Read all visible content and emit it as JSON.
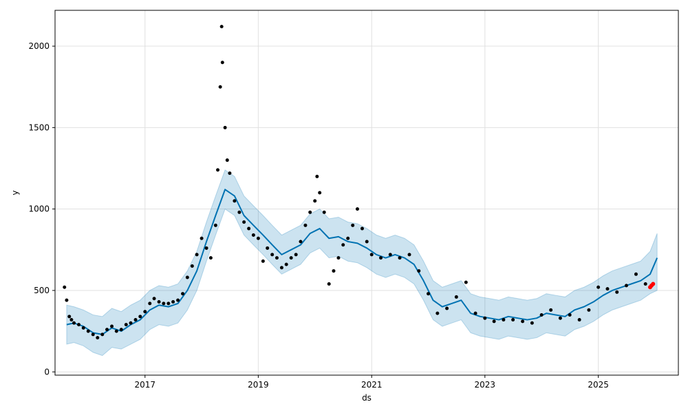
{
  "chart_data": {
    "type": "line",
    "title": "",
    "xlabel": "ds",
    "ylabel": "y",
    "xlim": [
      "2015-06-01",
      "2026-06-01"
    ],
    "ylim": [
      -20,
      2220
    ],
    "grid": true,
    "x_ticks": [
      {
        "date": "2017-01-01",
        "label": "2017"
      },
      {
        "date": "2019-01-01",
        "label": "2019"
      },
      {
        "date": "2021-01-01",
        "label": "2021"
      },
      {
        "date": "2023-01-01",
        "label": "2023"
      },
      {
        "date": "2025-01-01",
        "label": "2025"
      }
    ],
    "y_ticks": [
      0,
      500,
      1000,
      1500,
      2000
    ],
    "colors": {
      "observed": "#000000",
      "forecast_line": "#0072B2",
      "uncertainty_band": "#0072B2",
      "recent_points": "#ff0000"
    },
    "series": [
      {
        "kind": "forecast",
        "points": [
          [
            "2015-08-15",
            290
          ],
          [
            "2015-10-01",
            300
          ],
          [
            "2015-12-01",
            280
          ],
          [
            "2016-02-01",
            240
          ],
          [
            "2016-04-01",
            230
          ],
          [
            "2016-06-01",
            270
          ],
          [
            "2016-08-01",
            250
          ],
          [
            "2016-10-01",
            290
          ],
          [
            "2016-12-01",
            320
          ],
          [
            "2017-02-01",
            380
          ],
          [
            "2017-04-01",
            410
          ],
          [
            "2017-06-01",
            400
          ],
          [
            "2017-08-01",
            420
          ],
          [
            "2017-10-01",
            500
          ],
          [
            "2017-12-01",
            620
          ],
          [
            "2018-02-01",
            800
          ],
          [
            "2018-04-01",
            960
          ],
          [
            "2018-06-01",
            1120
          ],
          [
            "2018-08-01",
            1080
          ],
          [
            "2018-10-01",
            960
          ],
          [
            "2018-12-01",
            900
          ],
          [
            "2019-02-01",
            840
          ],
          [
            "2019-04-01",
            780
          ],
          [
            "2019-06-01",
            720
          ],
          [
            "2019-08-01",
            750
          ],
          [
            "2019-10-01",
            780
          ],
          [
            "2019-12-01",
            850
          ],
          [
            "2020-02-01",
            880
          ],
          [
            "2020-04-01",
            820
          ],
          [
            "2020-06-01",
            830
          ],
          [
            "2020-08-01",
            800
          ],
          [
            "2020-10-01",
            790
          ],
          [
            "2020-12-01",
            760
          ],
          [
            "2021-02-01",
            720
          ],
          [
            "2021-04-01",
            700
          ],
          [
            "2021-06-01",
            720
          ],
          [
            "2021-08-01",
            700
          ],
          [
            "2021-10-01",
            660
          ],
          [
            "2021-12-01",
            560
          ],
          [
            "2022-02-01",
            440
          ],
          [
            "2022-04-01",
            400
          ],
          [
            "2022-06-01",
            420
          ],
          [
            "2022-08-01",
            440
          ],
          [
            "2022-10-01",
            360
          ],
          [
            "2022-12-01",
            340
          ],
          [
            "2023-02-01",
            330
          ],
          [
            "2023-04-01",
            320
          ],
          [
            "2023-06-01",
            340
          ],
          [
            "2023-08-01",
            330
          ],
          [
            "2023-10-01",
            320
          ],
          [
            "2023-12-01",
            330
          ],
          [
            "2024-02-01",
            360
          ],
          [
            "2024-04-01",
            350
          ],
          [
            "2024-06-01",
            340
          ],
          [
            "2024-08-01",
            380
          ],
          [
            "2024-10-01",
            400
          ],
          [
            "2024-12-01",
            430
          ],
          [
            "2025-02-01",
            470
          ],
          [
            "2025-04-01",
            500
          ],
          [
            "2025-06-01",
            520
          ],
          [
            "2025-08-01",
            540
          ],
          [
            "2025-10-01",
            560
          ],
          [
            "2025-12-01",
            600
          ],
          [
            "2026-01-15",
            700
          ]
        ]
      },
      {
        "kind": "uncertainty",
        "points": [
          [
            "2015-08-15",
            170,
            410
          ],
          [
            "2015-10-01",
            180,
            400
          ],
          [
            "2015-12-01",
            160,
            380
          ],
          [
            "2016-02-01",
            120,
            350
          ],
          [
            "2016-04-01",
            100,
            340
          ],
          [
            "2016-06-01",
            150,
            390
          ],
          [
            "2016-08-01",
            140,
            370
          ],
          [
            "2016-10-01",
            170,
            410
          ],
          [
            "2016-12-01",
            200,
            440
          ],
          [
            "2017-02-01",
            260,
            500
          ],
          [
            "2017-04-01",
            290,
            530
          ],
          [
            "2017-06-01",
            280,
            520
          ],
          [
            "2017-08-01",
            300,
            540
          ],
          [
            "2017-10-01",
            380,
            620
          ],
          [
            "2017-12-01",
            500,
            740
          ],
          [
            "2018-02-01",
            680,
            920
          ],
          [
            "2018-04-01",
            840,
            1080
          ],
          [
            "2018-06-01",
            1000,
            1240
          ],
          [
            "2018-08-01",
            960,
            1200
          ],
          [
            "2018-10-01",
            840,
            1080
          ],
          [
            "2018-12-01",
            780,
            1020
          ],
          [
            "2019-02-01",
            720,
            960
          ],
          [
            "2019-04-01",
            660,
            900
          ],
          [
            "2019-06-01",
            600,
            840
          ],
          [
            "2019-08-01",
            630,
            870
          ],
          [
            "2019-10-01",
            660,
            900
          ],
          [
            "2019-12-01",
            730,
            970
          ],
          [
            "2020-02-01",
            760,
            1000
          ],
          [
            "2020-04-01",
            700,
            940
          ],
          [
            "2020-06-01",
            710,
            950
          ],
          [
            "2020-08-01",
            680,
            920
          ],
          [
            "2020-10-01",
            670,
            910
          ],
          [
            "2020-12-01",
            640,
            880
          ],
          [
            "2021-02-01",
            600,
            840
          ],
          [
            "2021-04-01",
            580,
            820
          ],
          [
            "2021-06-01",
            600,
            840
          ],
          [
            "2021-08-01",
            580,
            820
          ],
          [
            "2021-10-01",
            540,
            780
          ],
          [
            "2021-12-01",
            440,
            680
          ],
          [
            "2022-02-01",
            320,
            560
          ],
          [
            "2022-04-01",
            280,
            520
          ],
          [
            "2022-06-01",
            300,
            540
          ],
          [
            "2022-08-01",
            320,
            560
          ],
          [
            "2022-10-01",
            240,
            480
          ],
          [
            "2022-12-01",
            220,
            460
          ],
          [
            "2023-02-01",
            210,
            450
          ],
          [
            "2023-04-01",
            200,
            440
          ],
          [
            "2023-06-01",
            220,
            460
          ],
          [
            "2023-08-01",
            210,
            450
          ],
          [
            "2023-10-01",
            200,
            440
          ],
          [
            "2023-12-01",
            210,
            450
          ],
          [
            "2024-02-01",
            240,
            480
          ],
          [
            "2024-04-01",
            230,
            470
          ],
          [
            "2024-06-01",
            220,
            460
          ],
          [
            "2024-08-01",
            260,
            500
          ],
          [
            "2024-10-01",
            280,
            520
          ],
          [
            "2024-12-01",
            310,
            550
          ],
          [
            "2025-02-01",
            350,
            590
          ],
          [
            "2025-04-01",
            380,
            620
          ],
          [
            "2025-06-01",
            400,
            640
          ],
          [
            "2025-08-01",
            420,
            660
          ],
          [
            "2025-10-01",
            440,
            680
          ],
          [
            "2025-12-01",
            480,
            740
          ],
          [
            "2026-01-15",
            500,
            850
          ]
        ]
      },
      {
        "kind": "observed",
        "points": [
          [
            "2015-08-01",
            520
          ],
          [
            "2015-08-15",
            440
          ],
          [
            "2015-09-01",
            340
          ],
          [
            "2015-09-15",
            320
          ],
          [
            "2015-10-01",
            300
          ],
          [
            "2015-11-01",
            290
          ],
          [
            "2015-12-01",
            270
          ],
          [
            "2016-01-01",
            250
          ],
          [
            "2016-02-01",
            230
          ],
          [
            "2016-03-01",
            210
          ],
          [
            "2016-04-01",
            230
          ],
          [
            "2016-05-01",
            260
          ],
          [
            "2016-06-01",
            280
          ],
          [
            "2016-07-01",
            250
          ],
          [
            "2016-08-01",
            260
          ],
          [
            "2016-09-01",
            290
          ],
          [
            "2016-10-01",
            300
          ],
          [
            "2016-11-01",
            320
          ],
          [
            "2016-12-01",
            340
          ],
          [
            "2017-01-01",
            370
          ],
          [
            "2017-02-01",
            420
          ],
          [
            "2017-03-01",
            450
          ],
          [
            "2017-04-01",
            430
          ],
          [
            "2017-05-01",
            420
          ],
          [
            "2017-06-01",
            420
          ],
          [
            "2017-07-01",
            430
          ],
          [
            "2017-08-01",
            440
          ],
          [
            "2017-09-01",
            480
          ],
          [
            "2017-10-01",
            580
          ],
          [
            "2017-11-01",
            650
          ],
          [
            "2017-12-01",
            720
          ],
          [
            "2018-01-01",
            820
          ],
          [
            "2018-02-01",
            760
          ],
          [
            "2018-03-01",
            700
          ],
          [
            "2018-04-01",
            900
          ],
          [
            "2018-04-15",
            1240
          ],
          [
            "2018-05-01",
            1750
          ],
          [
            "2018-05-10",
            2120
          ],
          [
            "2018-05-15",
            1900
          ],
          [
            "2018-06-01",
            1500
          ],
          [
            "2018-06-15",
            1300
          ],
          [
            "2018-07-01",
            1220
          ],
          [
            "2018-08-01",
            1050
          ],
          [
            "2018-09-01",
            980
          ],
          [
            "2018-10-01",
            920
          ],
          [
            "2018-11-01",
            880
          ],
          [
            "2018-12-01",
            840
          ],
          [
            "2019-01-01",
            820
          ],
          [
            "2019-02-01",
            680
          ],
          [
            "2019-03-01",
            760
          ],
          [
            "2019-04-01",
            720
          ],
          [
            "2019-05-01",
            700
          ],
          [
            "2019-06-01",
            640
          ],
          [
            "2019-07-01",
            660
          ],
          [
            "2019-08-01",
            700
          ],
          [
            "2019-09-01",
            720
          ],
          [
            "2019-10-01",
            800
          ],
          [
            "2019-11-01",
            900
          ],
          [
            "2019-12-01",
            980
          ],
          [
            "2020-01-01",
            1050
          ],
          [
            "2020-01-15",
            1200
          ],
          [
            "2020-02-01",
            1100
          ],
          [
            "2020-03-01",
            980
          ],
          [
            "2020-04-01",
            540
          ],
          [
            "2020-05-01",
            620
          ],
          [
            "2020-06-01",
            700
          ],
          [
            "2020-07-01",
            780
          ],
          [
            "2020-08-01",
            820
          ],
          [
            "2020-09-01",
            900
          ],
          [
            "2020-10-01",
            1000
          ],
          [
            "2020-11-01",
            880
          ],
          [
            "2020-12-01",
            800
          ],
          [
            "2021-01-01",
            720
          ],
          [
            "2021-03-01",
            700
          ],
          [
            "2021-05-01",
            720
          ],
          [
            "2021-07-01",
            700
          ],
          [
            "2021-09-01",
            720
          ],
          [
            "2021-11-01",
            620
          ],
          [
            "2022-01-01",
            480
          ],
          [
            "2022-03-01",
            360
          ],
          [
            "2022-05-01",
            390
          ],
          [
            "2022-07-01",
            460
          ],
          [
            "2022-09-01",
            550
          ],
          [
            "2022-11-01",
            360
          ],
          [
            "2023-01-01",
            330
          ],
          [
            "2023-03-01",
            310
          ],
          [
            "2023-05-01",
            320
          ],
          [
            "2023-07-01",
            320
          ],
          [
            "2023-09-01",
            310
          ],
          [
            "2023-11-01",
            300
          ],
          [
            "2024-01-01",
            350
          ],
          [
            "2024-03-01",
            380
          ],
          [
            "2024-05-01",
            330
          ],
          [
            "2024-07-01",
            350
          ],
          [
            "2024-09-01",
            320
          ],
          [
            "2024-11-01",
            380
          ],
          [
            "2025-01-01",
            520
          ],
          [
            "2025-03-01",
            510
          ],
          [
            "2025-05-01",
            490
          ],
          [
            "2025-07-01",
            530
          ],
          [
            "2025-09-01",
            600
          ],
          [
            "2025-11-01",
            540
          ]
        ]
      },
      {
        "kind": "recent",
        "points": [
          [
            "2025-12-01",
            520
          ],
          [
            "2025-12-10",
            530
          ],
          [
            "2025-12-20",
            540
          ]
        ]
      }
    ]
  }
}
